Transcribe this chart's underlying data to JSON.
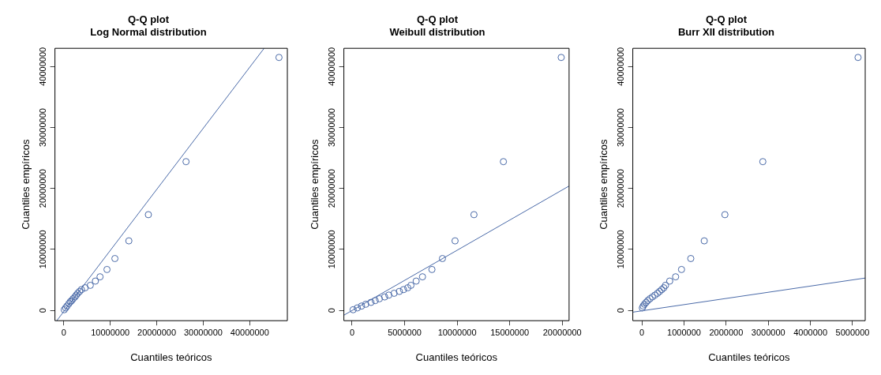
{
  "chart_data": [
    {
      "type": "scatter",
      "title": "Q-Q plot",
      "subtitle": "Log Normal distribution",
      "xlabel": "Cuantiles teóricos",
      "ylabel": "Cuantiles empíricos",
      "xlim": [
        -1900000,
        48100000
      ],
      "ylim": [
        -1700000,
        43000000
      ],
      "xticks": [
        0,
        10000000,
        20000000,
        30000000,
        40000000
      ],
      "yticks": [
        0,
        10000000,
        20000000,
        30000000,
        40000000
      ],
      "series": [
        {
          "type": "scatter",
          "marker": "circle",
          "color": "#4a6aa8",
          "x": [
            100000,
            400000,
            700000,
            1100000,
            1400000,
            1700000,
            2000000,
            2400000,
            2700000,
            3000000,
            3400000,
            3800000,
            4600000,
            5700000,
            6800000,
            7800000,
            9300000,
            11000000,
            14000000,
            18200000,
            26300000,
            46300000
          ],
          "values": [
            100000,
            400000,
            700000,
            1100000,
            1400000,
            1600000,
            1900000,
            2200000,
            2500000,
            2800000,
            3100000,
            3400000,
            3700000,
            4100000,
            4800000,
            5500000,
            6700000,
            8500000,
            11400000,
            15700000,
            24400000,
            41500000
          ]
        },
        {
          "type": "line",
          "marker": "none",
          "color": "#4a6aa8",
          "x": [
            -1500000,
            43100000
          ],
          "values": [
            -1700000,
            43000000
          ]
        }
      ]
    },
    {
      "type": "scatter",
      "title": "Q-Q plot",
      "subtitle": "Weibull distribution",
      "xlabel": "Cuantiles teóricos",
      "ylabel": "Cuantiles empíricos",
      "xlim": [
        -780000,
        20650000
      ],
      "ylim": [
        -1700000,
        43000000
      ],
      "xticks": [
        0,
        5000000,
        10000000,
        15000000,
        20000000
      ],
      "yticks": [
        0,
        10000000,
        20000000,
        30000000,
        40000000
      ],
      "series": [
        {
          "type": "scatter",
          "marker": "circle",
          "color": "#4a6aa8",
          "x": [
            100000,
            500000,
            900000,
            1300000,
            1800000,
            2200000,
            2600000,
            3100000,
            3500000,
            4000000,
            4500000,
            4900000,
            5300000,
            5600000,
            6100000,
            6700000,
            7600000,
            8600000,
            9800000,
            11600000,
            14400000,
            19900000
          ],
          "values": [
            100000,
            400000,
            700000,
            1000000,
            1300000,
            1600000,
            1900000,
            2200000,
            2500000,
            2800000,
            3100000,
            3400000,
            3700000,
            4100000,
            4800000,
            5500000,
            6700000,
            8500000,
            11400000,
            15700000,
            24400000,
            41500000
          ]
        },
        {
          "type": "line",
          "marker": "none",
          "color": "#4a6aa8",
          "x": [
            -780000,
            20650000
          ],
          "values": [
            -800000,
            20400000
          ]
        }
      ]
    },
    {
      "type": "scatter",
      "title": "Q-Q plot",
      "subtitle": "Burr XII distribution",
      "xlabel": "Cuantiles teóricos",
      "ylabel": "Cuantiles empíricos",
      "xlim": [
        -216000,
        5300000
      ],
      "ylim": [
        -1700000,
        43000000
      ],
      "xticks": [
        0,
        1000000,
        2000000,
        3000000,
        4000000,
        5000000
      ],
      "yticks": [
        0,
        10000000,
        20000000,
        30000000,
        40000000
      ],
      "series": [
        {
          "type": "scatter",
          "marker": "circle",
          "color": "#4a6aa8",
          "x": [
            10000,
            30000,
            60000,
            100000,
            140000,
            190000,
            250000,
            310000,
            370000,
            420000,
            470000,
            520000,
            560000,
            660000,
            800000,
            940000,
            1160000,
            1480000,
            1970000,
            2870000,
            5130000
          ],
          "values": [
            400000,
            700000,
            1000000,
            1300000,
            1600000,
            1900000,
            2200000,
            2500000,
            2800000,
            3100000,
            3400000,
            3700000,
            4100000,
            4800000,
            5500000,
            6700000,
            8500000,
            11400000,
            15700000,
            24400000,
            41500000
          ]
        },
        {
          "type": "line",
          "marker": "none",
          "color": "#4a6aa8",
          "x": [
            -216000,
            5300000
          ],
          "values": [
            -300000,
            5300000
          ]
        }
      ]
    }
  ]
}
